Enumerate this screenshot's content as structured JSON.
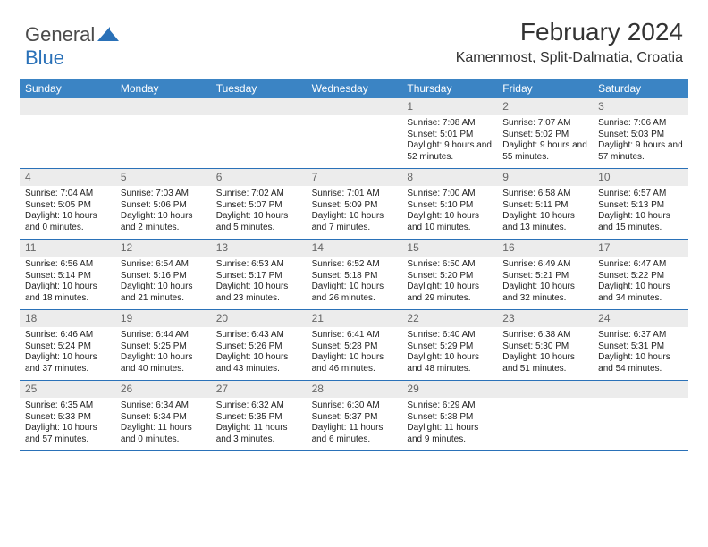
{
  "logo": {
    "text1": "General",
    "text2": "Blue"
  },
  "title": "February 2024",
  "location": "Kamenmost, Split-Dalmatia, Croatia",
  "colors": {
    "header_bar": "#3b84c4",
    "row_divider": "#2a71b8",
    "daynum_bg": "#ececec",
    "logo_blue": "#2a71b8",
    "text": "#222222"
  },
  "weekdays": [
    "Sunday",
    "Monday",
    "Tuesday",
    "Wednesday",
    "Thursday",
    "Friday",
    "Saturday"
  ],
  "weeks": [
    [
      null,
      null,
      null,
      null,
      {
        "n": "1",
        "sunrise": "7:08 AM",
        "sunset": "5:01 PM",
        "daylight": "9 hours and 52 minutes."
      },
      {
        "n": "2",
        "sunrise": "7:07 AM",
        "sunset": "5:02 PM",
        "daylight": "9 hours and 55 minutes."
      },
      {
        "n": "3",
        "sunrise": "7:06 AM",
        "sunset": "5:03 PM",
        "daylight": "9 hours and 57 minutes."
      }
    ],
    [
      {
        "n": "4",
        "sunrise": "7:04 AM",
        "sunset": "5:05 PM",
        "daylight": "10 hours and 0 minutes."
      },
      {
        "n": "5",
        "sunrise": "7:03 AM",
        "sunset": "5:06 PM",
        "daylight": "10 hours and 2 minutes."
      },
      {
        "n": "6",
        "sunrise": "7:02 AM",
        "sunset": "5:07 PM",
        "daylight": "10 hours and 5 minutes."
      },
      {
        "n": "7",
        "sunrise": "7:01 AM",
        "sunset": "5:09 PM",
        "daylight": "10 hours and 7 minutes."
      },
      {
        "n": "8",
        "sunrise": "7:00 AM",
        "sunset": "5:10 PM",
        "daylight": "10 hours and 10 minutes."
      },
      {
        "n": "9",
        "sunrise": "6:58 AM",
        "sunset": "5:11 PM",
        "daylight": "10 hours and 13 minutes."
      },
      {
        "n": "10",
        "sunrise": "6:57 AM",
        "sunset": "5:13 PM",
        "daylight": "10 hours and 15 minutes."
      }
    ],
    [
      {
        "n": "11",
        "sunrise": "6:56 AM",
        "sunset": "5:14 PM",
        "daylight": "10 hours and 18 minutes."
      },
      {
        "n": "12",
        "sunrise": "6:54 AM",
        "sunset": "5:16 PM",
        "daylight": "10 hours and 21 minutes."
      },
      {
        "n": "13",
        "sunrise": "6:53 AM",
        "sunset": "5:17 PM",
        "daylight": "10 hours and 23 minutes."
      },
      {
        "n": "14",
        "sunrise": "6:52 AM",
        "sunset": "5:18 PM",
        "daylight": "10 hours and 26 minutes."
      },
      {
        "n": "15",
        "sunrise": "6:50 AM",
        "sunset": "5:20 PM",
        "daylight": "10 hours and 29 minutes."
      },
      {
        "n": "16",
        "sunrise": "6:49 AM",
        "sunset": "5:21 PM",
        "daylight": "10 hours and 32 minutes."
      },
      {
        "n": "17",
        "sunrise": "6:47 AM",
        "sunset": "5:22 PM",
        "daylight": "10 hours and 34 minutes."
      }
    ],
    [
      {
        "n": "18",
        "sunrise": "6:46 AM",
        "sunset": "5:24 PM",
        "daylight": "10 hours and 37 minutes."
      },
      {
        "n": "19",
        "sunrise": "6:44 AM",
        "sunset": "5:25 PM",
        "daylight": "10 hours and 40 minutes."
      },
      {
        "n": "20",
        "sunrise": "6:43 AM",
        "sunset": "5:26 PM",
        "daylight": "10 hours and 43 minutes."
      },
      {
        "n": "21",
        "sunrise": "6:41 AM",
        "sunset": "5:28 PM",
        "daylight": "10 hours and 46 minutes."
      },
      {
        "n": "22",
        "sunrise": "6:40 AM",
        "sunset": "5:29 PM",
        "daylight": "10 hours and 48 minutes."
      },
      {
        "n": "23",
        "sunrise": "6:38 AM",
        "sunset": "5:30 PM",
        "daylight": "10 hours and 51 minutes."
      },
      {
        "n": "24",
        "sunrise": "6:37 AM",
        "sunset": "5:31 PM",
        "daylight": "10 hours and 54 minutes."
      }
    ],
    [
      {
        "n": "25",
        "sunrise": "6:35 AM",
        "sunset": "5:33 PM",
        "daylight": "10 hours and 57 minutes."
      },
      {
        "n": "26",
        "sunrise": "6:34 AM",
        "sunset": "5:34 PM",
        "daylight": "11 hours and 0 minutes."
      },
      {
        "n": "27",
        "sunrise": "6:32 AM",
        "sunset": "5:35 PM",
        "daylight": "11 hours and 3 minutes."
      },
      {
        "n": "28",
        "sunrise": "6:30 AM",
        "sunset": "5:37 PM",
        "daylight": "11 hours and 6 minutes."
      },
      {
        "n": "29",
        "sunrise": "6:29 AM",
        "sunset": "5:38 PM",
        "daylight": "11 hours and 9 minutes."
      },
      null,
      null
    ]
  ],
  "labels": {
    "sunrise": "Sunrise:",
    "sunset": "Sunset:",
    "daylight": "Daylight:"
  }
}
